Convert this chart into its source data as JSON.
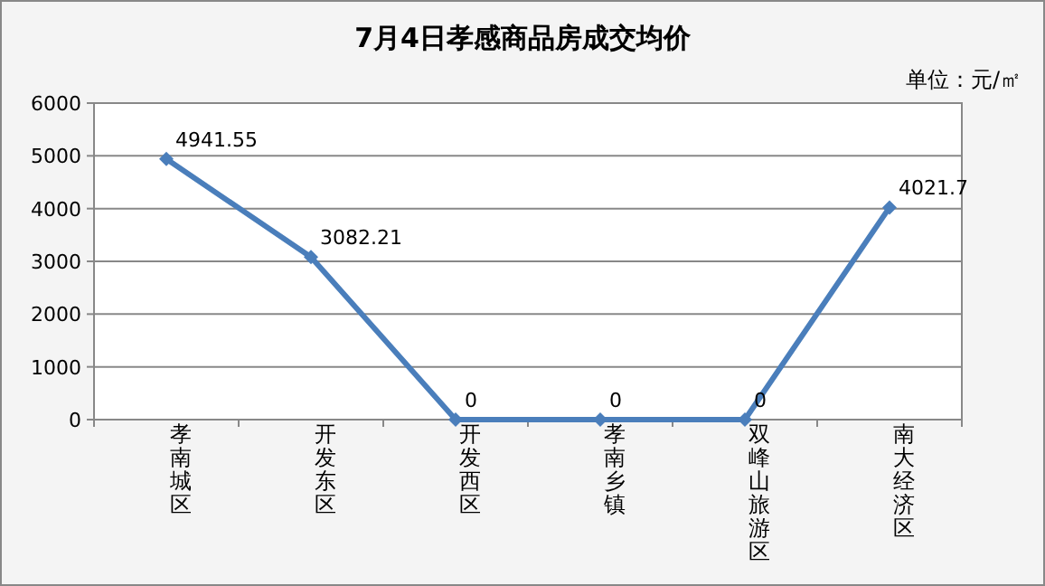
{
  "chart_data": {
    "type": "line",
    "title": "7月4日孝感商品房成交均价",
    "annotations": [
      "单位：元/㎡"
    ],
    "categories": [
      "孝南城区",
      "开发东区",
      "开发西区",
      "孝南乡镇",
      "双峰山旅游区",
      "南大经济区"
    ],
    "values": [
      4941.55,
      3082.21,
      0,
      0,
      0,
      4021.7
    ],
    "color": "#4a7ebb",
    "ylim": [
      0,
      6000
    ],
    "yticks": [
      0,
      1000,
      2000,
      3000,
      4000,
      5000,
      6000
    ],
    "grid": "y",
    "marker": "diamond",
    "data_labels": true
  }
}
